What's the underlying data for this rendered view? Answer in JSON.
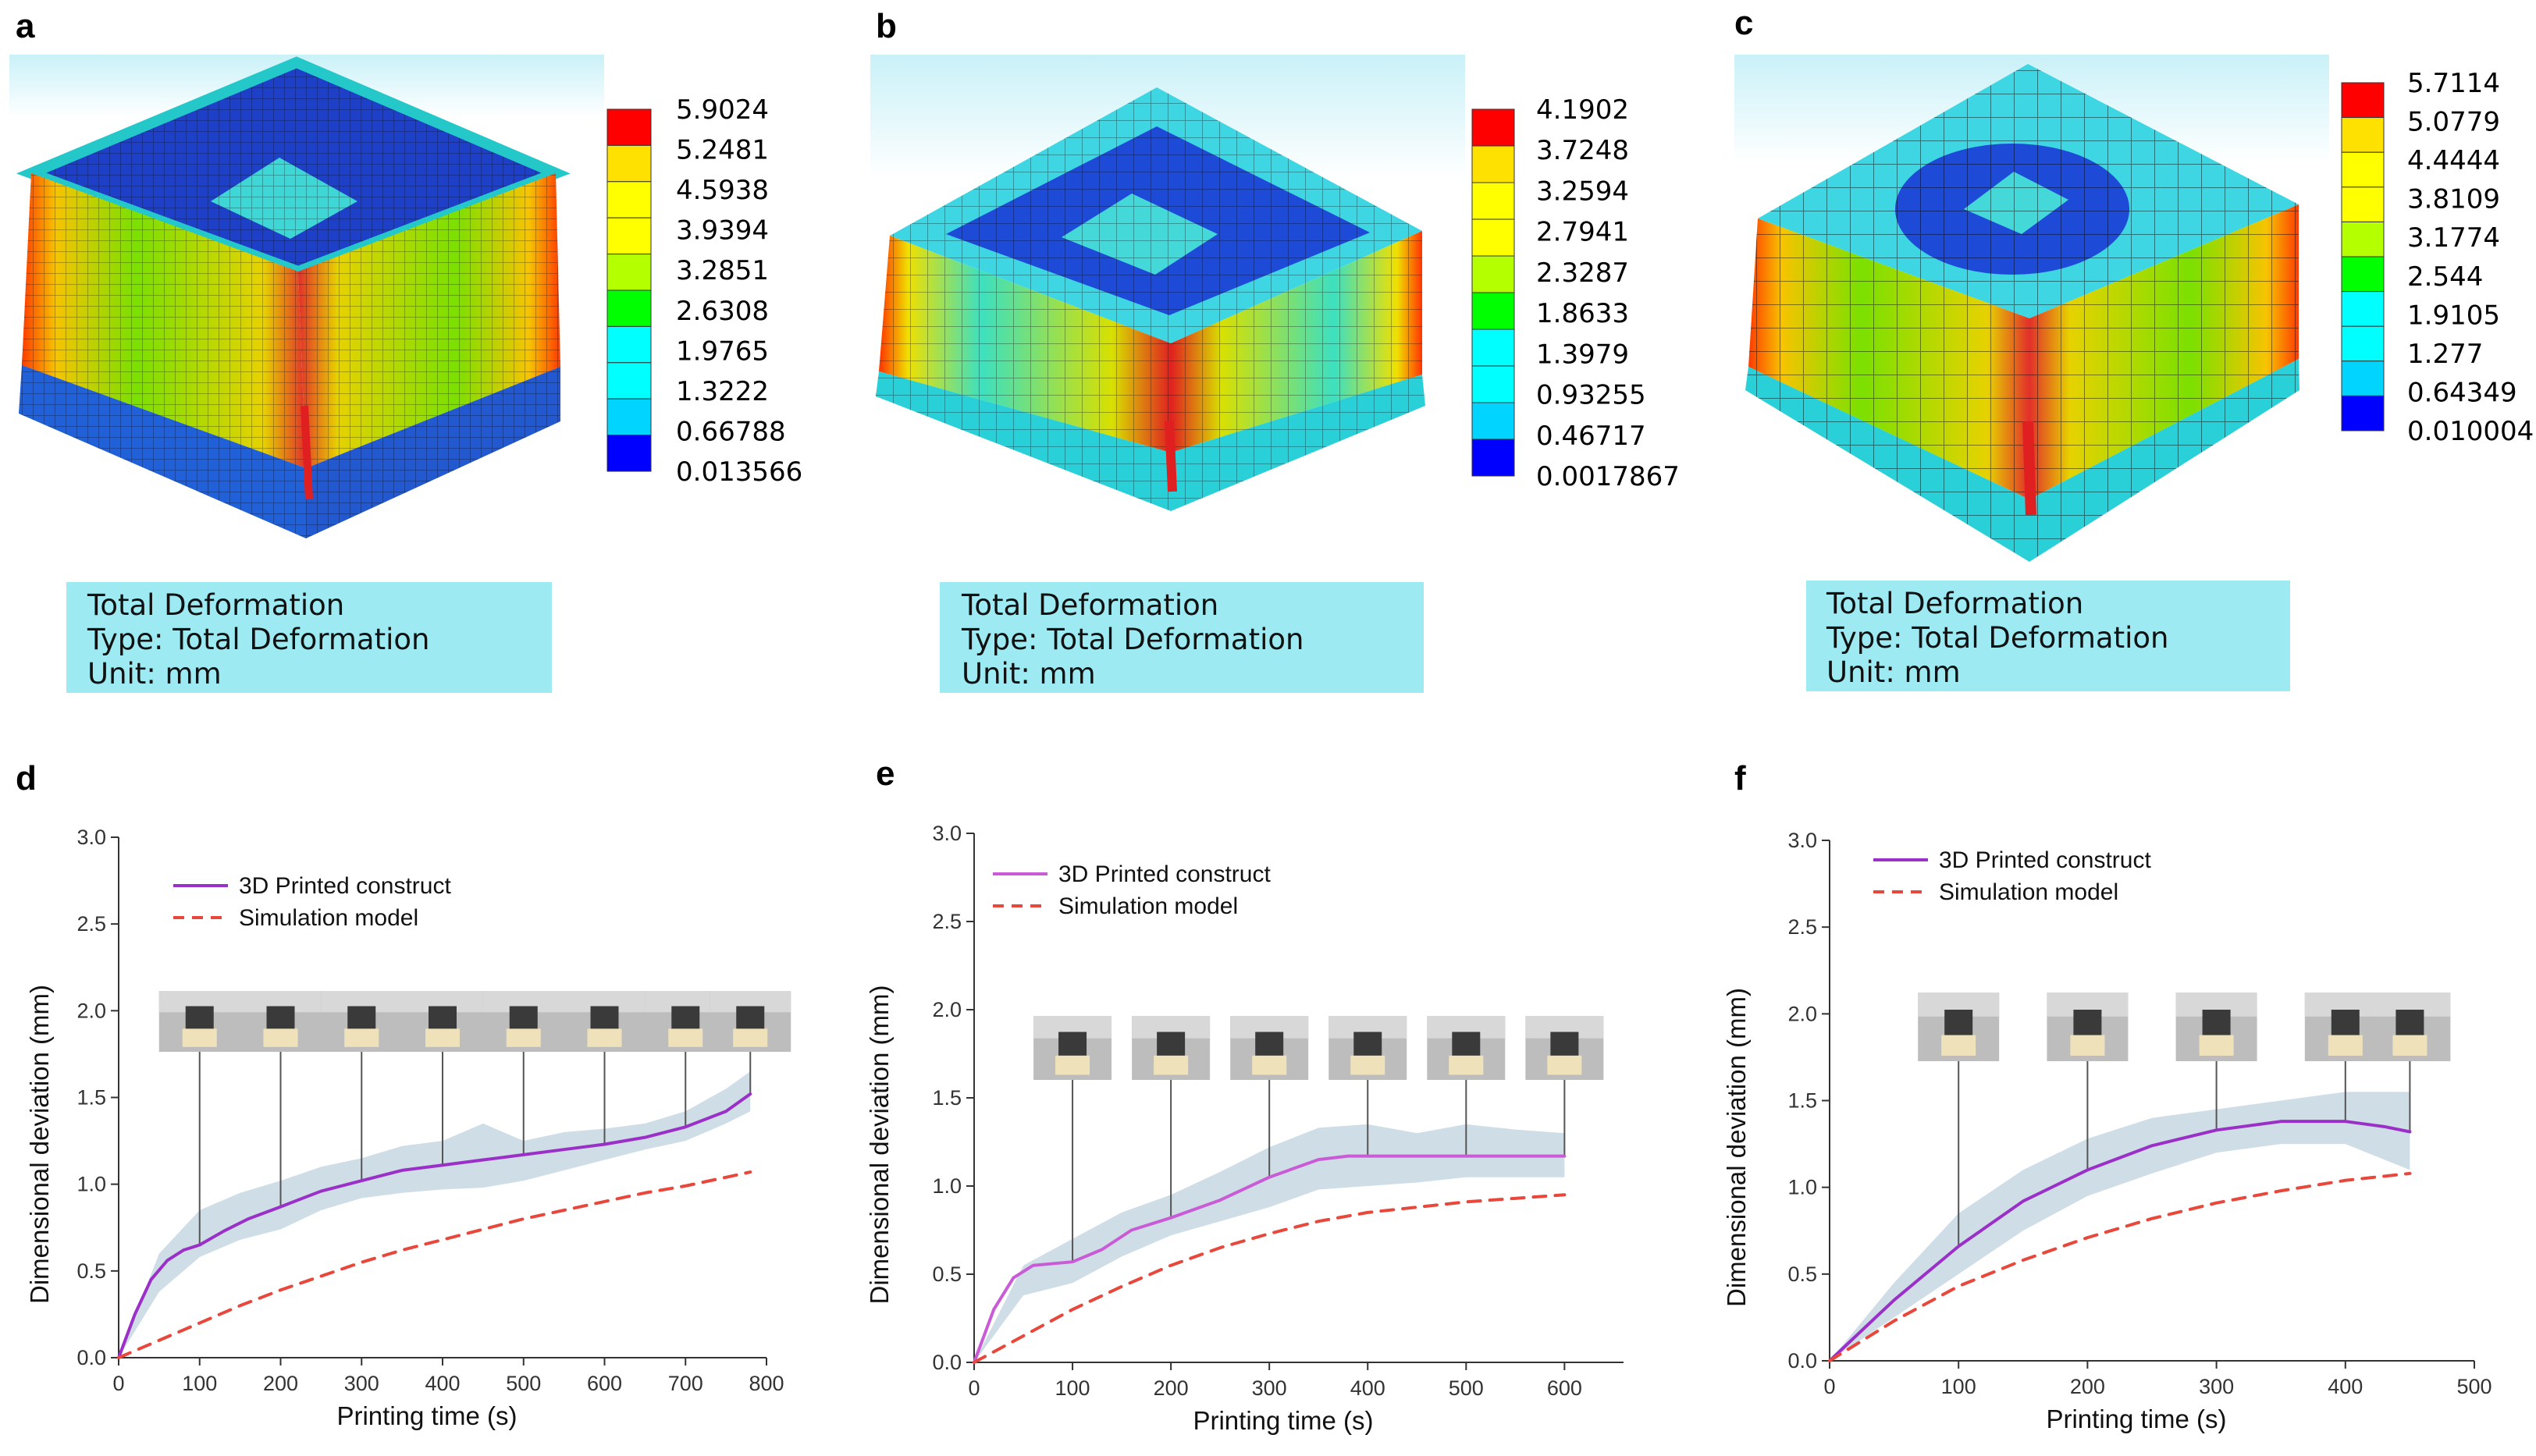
{
  "fem_panels": [
    {
      "label": "a",
      "colorbar_values": [
        "5.9024",
        "5.2481",
        "4.5938",
        "3.9394",
        "3.2851",
        "2.6308",
        "1.9765",
        "1.3222",
        "0.66788",
        "0.013566"
      ],
      "info": {
        "title": "Total Deformation",
        "type": "Type: Total Deformation",
        "unit": "Unit: mm"
      }
    },
    {
      "label": "b",
      "colorbar_values": [
        "4.1902",
        "3.7248",
        "3.2594",
        "2.7941",
        "2.3287",
        "1.8633",
        "1.3979",
        "0.93255",
        "0.46717",
        "0.0017867"
      ],
      "info": {
        "title": "Total Deformation",
        "type": "Type: Total Deformation",
        "unit": "Unit: mm"
      }
    },
    {
      "label": "c",
      "colorbar_values": [
        "5.7114",
        "5.0779",
        "4.4444",
        "3.8109",
        "3.1774",
        "2.544",
        "1.9105",
        "1.277",
        "0.64349",
        "0.010004"
      ],
      "info": {
        "title": "Total Deformation",
        "type": "Type: Total Deformation",
        "unit": "Unit: mm"
      }
    }
  ],
  "colorbar_colors": [
    "#ff0000",
    "#ffe100",
    "#ffff00",
    "#ffff00",
    "#b4ff00",
    "#00ff00",
    "#00ffff",
    "#00ffff",
    "#00d4ff",
    "#0000ff"
  ],
  "chart_data": [
    {
      "label": "d",
      "type": "line",
      "xlabel": "Printing time (s)",
      "ylabel": "Dimensional deviation (mm)",
      "xlim": [
        0,
        800
      ],
      "ylim": [
        0,
        3.0
      ],
      "xticks": [
        0,
        100,
        200,
        300,
        400,
        500,
        600,
        700,
        800
      ],
      "yticks": [
        "0.0",
        "0.5",
        "1.0",
        "1.5",
        "2.0",
        "2.5",
        "3.0"
      ],
      "photo_times": [
        100,
        200,
        300,
        400,
        500,
        600,
        700,
        780
      ],
      "series": [
        {
          "name": "3D Printed construct",
          "color": "#9b30c8",
          "style": "solid",
          "x": [
            0,
            20,
            40,
            60,
            80,
            100,
            130,
            160,
            200,
            250,
            300,
            350,
            400,
            450,
            500,
            550,
            600,
            650,
            700,
            750,
            780
          ],
          "y": [
            0,
            0.25,
            0.45,
            0.56,
            0.62,
            0.65,
            0.73,
            0.8,
            0.87,
            0.96,
            1.02,
            1.08,
            1.11,
            1.14,
            1.17,
            1.2,
            1.23,
            1.27,
            1.33,
            1.42,
            1.52
          ]
        },
        {
          "name": "Simulation model",
          "color": "#e8483c",
          "style": "dashed",
          "x": [
            0,
            50,
            100,
            150,
            200,
            250,
            300,
            350,
            400,
            450,
            500,
            550,
            600,
            650,
            700,
            750,
            780
          ],
          "y": [
            0,
            0.1,
            0.2,
            0.3,
            0.39,
            0.47,
            0.55,
            0.62,
            0.68,
            0.74,
            0.8,
            0.85,
            0.9,
            0.95,
            0.99,
            1.04,
            1.07
          ]
        }
      ],
      "band": {
        "x": [
          0,
          50,
          100,
          150,
          200,
          250,
          300,
          350,
          400,
          450,
          500,
          550,
          600,
          650,
          700,
          750,
          780
        ],
        "upper": [
          0,
          0.6,
          0.85,
          0.95,
          1.02,
          1.1,
          1.15,
          1.22,
          1.25,
          1.35,
          1.25,
          1.3,
          1.32,
          1.35,
          1.42,
          1.55,
          1.65
        ],
        "lower": [
          0,
          0.38,
          0.58,
          0.68,
          0.74,
          0.85,
          0.92,
          0.95,
          0.97,
          0.98,
          1.02,
          1.08,
          1.14,
          1.2,
          1.25,
          1.35,
          1.42
        ]
      }
    },
    {
      "label": "e",
      "type": "line",
      "xlabel": "Printing time (s)",
      "ylabel": "Dimensional deviation (mm)",
      "xlim": [
        0,
        660
      ],
      "ylim": [
        0,
        3.0
      ],
      "xticks": [
        0,
        100,
        200,
        300,
        400,
        500,
        600
      ],
      "yticks": [
        "0.0",
        "0.5",
        "1.0",
        "1.5",
        "2.0",
        "2.5",
        "3.0"
      ],
      "photo_times": [
        100,
        200,
        300,
        400,
        500,
        600
      ],
      "series": [
        {
          "name": "3D Printed construct",
          "color": "#c95cd6",
          "style": "solid",
          "x": [
            0,
            20,
            40,
            60,
            80,
            100,
            130,
            160,
            200,
            250,
            300,
            350,
            380,
            400,
            450,
            500,
            550,
            600
          ],
          "y": [
            0,
            0.3,
            0.48,
            0.55,
            0.56,
            0.57,
            0.64,
            0.75,
            0.82,
            0.92,
            1.05,
            1.15,
            1.17,
            1.17,
            1.17,
            1.17,
            1.17,
            1.17
          ]
        },
        {
          "name": "Simulation model",
          "color": "#e8483c",
          "style": "dashed",
          "x": [
            0,
            50,
            100,
            150,
            200,
            250,
            300,
            350,
            400,
            450,
            500,
            550,
            600
          ],
          "y": [
            0,
            0.15,
            0.3,
            0.43,
            0.55,
            0.65,
            0.73,
            0.8,
            0.85,
            0.88,
            0.91,
            0.93,
            0.95
          ]
        }
      ],
      "band": {
        "x": [
          0,
          50,
          100,
          150,
          200,
          250,
          300,
          350,
          400,
          450,
          500,
          550,
          600
        ],
        "upper": [
          0,
          0.55,
          0.7,
          0.85,
          0.95,
          1.08,
          1.22,
          1.33,
          1.35,
          1.3,
          1.35,
          1.32,
          1.3
        ],
        "lower": [
          0,
          0.38,
          0.45,
          0.6,
          0.72,
          0.8,
          0.88,
          0.98,
          1.0,
          1.02,
          1.05,
          1.05,
          1.05
        ]
      }
    },
    {
      "label": "f",
      "type": "line",
      "xlabel": "Printing time (s)",
      "ylabel": "Dimensional deviation (mm)",
      "xlim": [
        0,
        500
      ],
      "ylim": [
        0,
        3.0
      ],
      "xticks": [
        0,
        100,
        200,
        300,
        400,
        500
      ],
      "yticks": [
        "0.0",
        "0.5",
        "1.0",
        "1.5",
        "2.0",
        "2.5",
        "3.0"
      ],
      "photo_times": [
        100,
        200,
        300,
        400,
        450
      ],
      "series": [
        {
          "name": "3D Printed construct",
          "color": "#9b30c8",
          "style": "solid",
          "x": [
            0,
            50,
            100,
            150,
            200,
            250,
            300,
            350,
            400,
            430,
            450
          ],
          "y": [
            0,
            0.35,
            0.66,
            0.92,
            1.1,
            1.24,
            1.33,
            1.38,
            1.38,
            1.35,
            1.32
          ]
        },
        {
          "name": "Simulation model",
          "color": "#e8483c",
          "style": "dashed",
          "x": [
            0,
            50,
            100,
            150,
            200,
            250,
            300,
            350,
            400,
            450
          ],
          "y": [
            0,
            0.23,
            0.43,
            0.58,
            0.71,
            0.82,
            0.91,
            0.98,
            1.04,
            1.08
          ]
        }
      ],
      "band": {
        "x": [
          0,
          50,
          100,
          150,
          200,
          250,
          300,
          350,
          400,
          450
        ],
        "upper": [
          0,
          0.45,
          0.85,
          1.1,
          1.28,
          1.4,
          1.45,
          1.5,
          1.55,
          1.55
        ],
        "lower": [
          0,
          0.25,
          0.5,
          0.75,
          0.95,
          1.08,
          1.2,
          1.25,
          1.25,
          1.1
        ]
      }
    }
  ]
}
